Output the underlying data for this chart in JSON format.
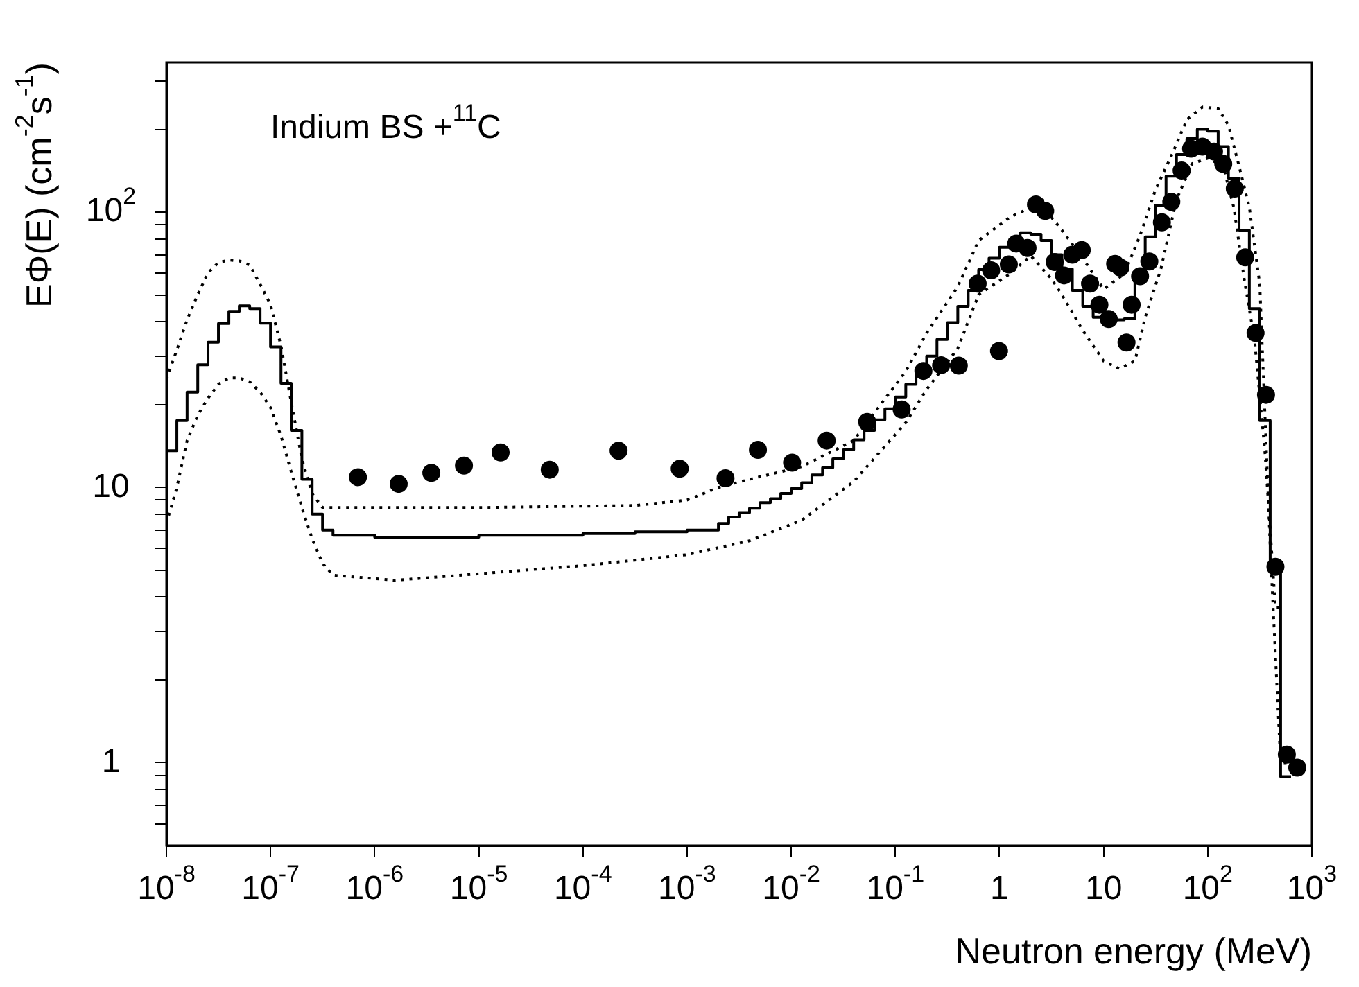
{
  "chart_data": {
    "type": "line",
    "xlabel": "Neutron energy (MeV)",
    "ylabel": "EΦ(E) (cm$^{-2}$s$^{-1}$)",
    "annotations": [
      "Indium BS +$^{11}$C"
    ],
    "log": "xy",
    "xlim": [
      1e-08,
      1000
    ],
    "ylim": [
      0.5,
      350
    ],
    "xticks": [
      {
        "value": 1e-08,
        "label": "10$^{-8}$"
      },
      {
        "value": 1e-07,
        "label": "10$^{-7}$"
      },
      {
        "value": 1e-06,
        "label": "10$^{-6}$"
      },
      {
        "value": 1e-05,
        "label": "10$^{-5}$"
      },
      {
        "value": 0.0001,
        "label": "10$^{-4}$"
      },
      {
        "value": 0.001,
        "label": "10$^{-3}$"
      },
      {
        "value": 0.01,
        "label": "10$^{-2}$"
      },
      {
        "value": 0.1,
        "label": "10$^{-1}$"
      },
      1,
      10,
      {
        "value": 100,
        "label": "10$^{2}$"
      },
      {
        "value": 1000,
        "label": "10$^{3}$"
      }
    ],
    "yticks": [
      {
        "value": 0.6,
        "label": null
      },
      {
        "value": 0.7,
        "label": null
      },
      {
        "value": 0.8,
        "label": null
      },
      {
        "value": 0.9,
        "label": null
      },
      1,
      {
        "value": 2,
        "label": null
      },
      {
        "value": 3,
        "label": null
      },
      {
        "value": 4,
        "label": null
      },
      {
        "value": 5,
        "label": null
      },
      {
        "value": 6,
        "label": null
      },
      {
        "value": 7,
        "label": null
      },
      {
        "value": 8,
        "label": null
      },
      {
        "value": 9,
        "label": null
      },
      10,
      {
        "value": 20,
        "label": null
      },
      {
        "value": 30,
        "label": null
      },
      {
        "value": 40,
        "label": null
      },
      {
        "value": 50,
        "label": null
      },
      {
        "value": 60,
        "label": null
      },
      {
        "value": 70,
        "label": null
      },
      {
        "value": 80,
        "label": null
      },
      {
        "value": 90,
        "label": null
      },
      {
        "value": 100,
        "label": "10$^{2}$"
      },
      {
        "value": 200,
        "label": null
      },
      {
        "value": 300,
        "label": null
      }
    ],
    "series": [
      {
        "type": "step",
        "color": "#000000",
        "line_style": "solid",
        "marker": "none",
        "x": [
          1e-08,
          1.26e-08,
          1.58e-08,
          2e-08,
          2.51e-08,
          3.16e-08,
          3.98e-08,
          5.01e-08,
          6.31e-08,
          7.94e-08,
          1e-07,
          1.26e-07,
          1.58e-07,
          2e-07,
          2.51e-07,
          3.16e-07,
          3.98e-07,
          1e-06,
          3.16e-06,
          1e-05,
          3.16e-05,
          0.0001,
          0.000316,
          0.001,
          0.002,
          0.00251,
          0.00316,
          0.00398,
          0.00501,
          0.00631,
          0.00794,
          0.01,
          0.0126,
          0.0158,
          0.02,
          0.0251,
          0.0316,
          0.0398,
          0.0501,
          0.0631,
          0.0794,
          0.1,
          0.126,
          0.158,
          0.2,
          0.251,
          0.316,
          0.398,
          0.501,
          0.631,
          0.794,
          1,
          1.26,
          1.58,
          2,
          2.51,
          3.16,
          3.98,
          5.01,
          6.31,
          7.94,
          10,
          12.6,
          15.8,
          20,
          25.1,
          31.6,
          39.8,
          50.1,
          63.1,
          79.4,
          100,
          126,
          158,
          200,
          251,
          316,
          398,
          501,
          631
        ],
        "values": [
          13.6,
          17.5,
          22.2,
          27.9,
          33.7,
          39.4,
          43.6,
          45.7,
          44.6,
          39.5,
          32.4,
          23.9,
          16.1,
          10.7,
          8.0,
          7.0,
          6.7,
          6.6,
          6.6,
          6.7,
          6.7,
          6.8,
          6.9,
          7.0,
          7.4,
          7.8,
          8.1,
          8.4,
          8.8,
          9.1,
          9.5,
          9.9,
          10.4,
          11.1,
          11.8,
          12.7,
          13.7,
          14.9,
          16.1,
          17.6,
          19.3,
          21.3,
          23.7,
          26.7,
          30.0,
          34.5,
          39.7,
          45.5,
          52.0,
          61.8,
          68.0,
          74.6,
          79.9,
          84.2,
          83.1,
          78.9,
          70.0,
          62.2,
          52.0,
          45.5,
          41.5,
          40.6,
          40.6,
          41.0,
          58.5,
          81.3,
          106,
          135,
          162,
          185,
          200,
          197,
          173,
          133,
          86,
          44.6,
          17.5,
          5.15,
          0.89,
          0.89
        ]
      },
      {
        "type": "line",
        "color": "#000000",
        "line_style": "dotted",
        "marker": "none",
        "x": [
          1e-08,
          1.26e-08,
          1.58e-08,
          2e-08,
          2.51e-08,
          3.16e-08,
          3.98e-08,
          5.01e-08,
          6.31e-08,
          7.94e-08,
          1e-07,
          1.26e-07,
          1.58e-07,
          2e-07,
          2.51e-07,
          3.16e-07,
          1e-05,
          0.000316,
          0.001,
          0.002,
          0.00398,
          0.0126,
          0.0398,
          0.0631,
          0.126,
          0.2,
          0.398,
          0.631,
          1.26,
          2,
          3.16,
          3.98,
          6.31,
          10,
          15.8,
          22.4,
          31.6,
          44.7,
          63.1,
          89.1,
          126,
          158,
          200,
          251,
          316,
          398,
          501,
          631
        ],
        "values": [
          24.7,
          31.6,
          40.6,
          50.2,
          60.2,
          65.6,
          67.0,
          66.5,
          64.2,
          54.8,
          46.1,
          32.7,
          20.4,
          12.7,
          9.5,
          8.45,
          8.45,
          8.6,
          9.0,
          10.0,
          10.7,
          11.9,
          14.8,
          18.7,
          26.4,
          36.4,
          53.6,
          78.9,
          95.8,
          104,
          95.8,
          86,
          68,
          52.5,
          59.7,
          82.4,
          121,
          160,
          217,
          241,
          238,
          207,
          147,
          104,
          54.8,
          6.1,
          1.0,
          1.0
        ]
      },
      {
        "type": "line",
        "color": "#000000",
        "line_style": "dotted",
        "marker": "none",
        "x": [
          1e-08,
          1.26e-08,
          1.58e-08,
          2e-08,
          2.51e-08,
          3.16e-08,
          3.98e-08,
          5.01e-08,
          6.31e-08,
          7.94e-08,
          1e-07,
          1.26e-07,
          1.58e-07,
          2e-07,
          2.51e-07,
          3.16e-07,
          3.98e-07,
          1.58e-06,
          0.0001,
          0.001,
          0.00398,
          0.0126,
          0.0398,
          0.126,
          0.2,
          0.398,
          0.631,
          1.26,
          2,
          3.16,
          3.98,
          6.31,
          10,
          14.1,
          20,
          25.1,
          35.5,
          50.1,
          70.8,
          100,
          141,
          178,
          224,
          282,
          355,
          447,
          501
        ],
        "values": [
          7.4,
          10.0,
          14.8,
          18.3,
          21.1,
          23.7,
          25.0,
          25.0,
          24.2,
          22.2,
          19.5,
          15.4,
          11.4,
          8.45,
          6.5,
          5.3,
          4.8,
          4.6,
          5.2,
          5.7,
          6.4,
          7.6,
          10.5,
          17.2,
          22.7,
          32.0,
          50.2,
          59.7,
          69.4,
          57.2,
          50.2,
          37.2,
          28.8,
          27.0,
          28.8,
          41.5,
          62.2,
          111,
          150,
          157,
          147,
          104,
          57.2,
          34.2,
          13.3,
          3.66,
          3.66
        ]
      },
      {
        "type": "scatter",
        "color": "#000000",
        "marker": "circle",
        "x": [
          6.9e-07,
          1.7e-06,
          3.5e-06,
          7.2e-06,
          1.62e-05,
          4.8e-05,
          0.00022,
          0.00085,
          0.00234,
          0.00479,
          0.0102,
          0.0219,
          0.0537,
          0.115,
          0.186,
          0.275,
          0.407,
          0.617,
          0.832,
          0.99,
          1.23,
          1.45,
          1.86,
          2.24,
          2.75,
          3.39,
          4.17,
          5.01,
          6.17,
          7.41,
          9.12,
          11.2,
          12.9,
          14.5,
          16.6,
          18.6,
          22.4,
          27.5,
          36.3,
          44.7,
          56.2,
          69.2,
          89.1,
          115,
          141,
          182,
          229,
          288,
          363,
          447,
          575,
          724
        ],
        "values": [
          10.9,
          10.3,
          11.3,
          12.0,
          13.4,
          11.6,
          13.6,
          11.7,
          10.8,
          13.7,
          12.3,
          14.8,
          17.3,
          19.2,
          26.5,
          27.8,
          27.7,
          55,
          61.5,
          31.3,
          64.6,
          76.9,
          74.1,
          106.6,
          101,
          65.9,
          58.9,
          70,
          72.8,
          55,
          46.1,
          40.9,
          64.9,
          62.9,
          33.6,
          46.1,
          58.5,
          66.2,
          91.8,
          109,
          141.6,
          170,
          173,
          166,
          149.6,
          121.8,
          68.5,
          36.4,
          21.7,
          5.15,
          1.07,
          0.96
        ]
      }
    ]
  }
}
